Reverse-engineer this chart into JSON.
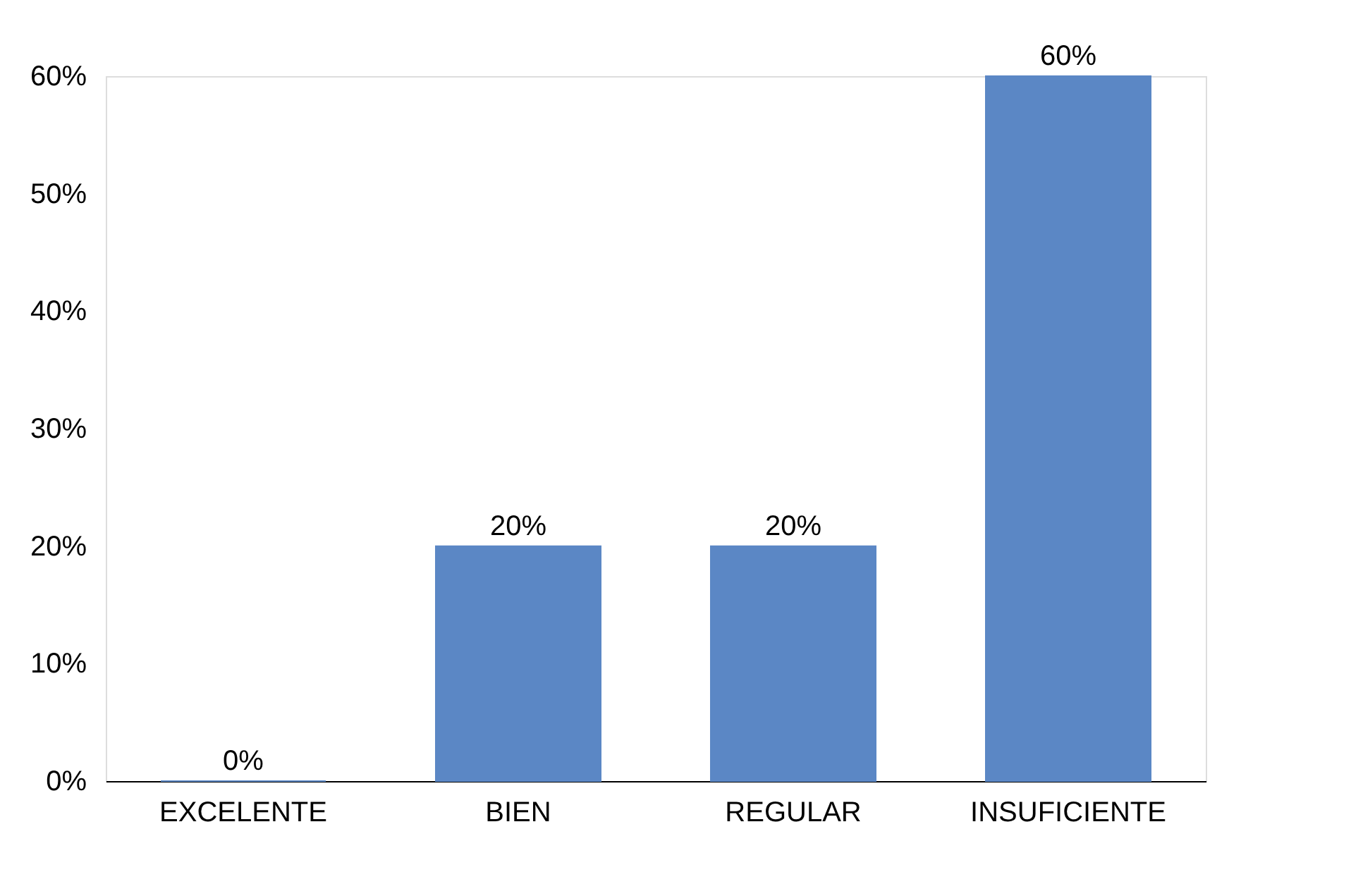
{
  "chart_data": {
    "type": "bar",
    "categories": [
      "EXCELENTE",
      "BIEN",
      "REGULAR",
      "INSUFICIENTE"
    ],
    "values": [
      0,
      20,
      20,
      60
    ],
    "value_labels": [
      "0%",
      "20%",
      "20%",
      "60%"
    ],
    "color": "#5b87c5",
    "ylim": [
      0,
      60
    ],
    "yticks": [
      {
        "value": 0,
        "label": "0%"
      },
      {
        "value": 10,
        "label": "10%"
      },
      {
        "value": 20,
        "label": "20%"
      },
      {
        "value": 30,
        "label": "30%"
      },
      {
        "value": 40,
        "label": "40%"
      },
      {
        "value": 50,
        "label": "50%"
      },
      {
        "value": 60,
        "label": "60%"
      }
    ],
    "grid": false
  }
}
